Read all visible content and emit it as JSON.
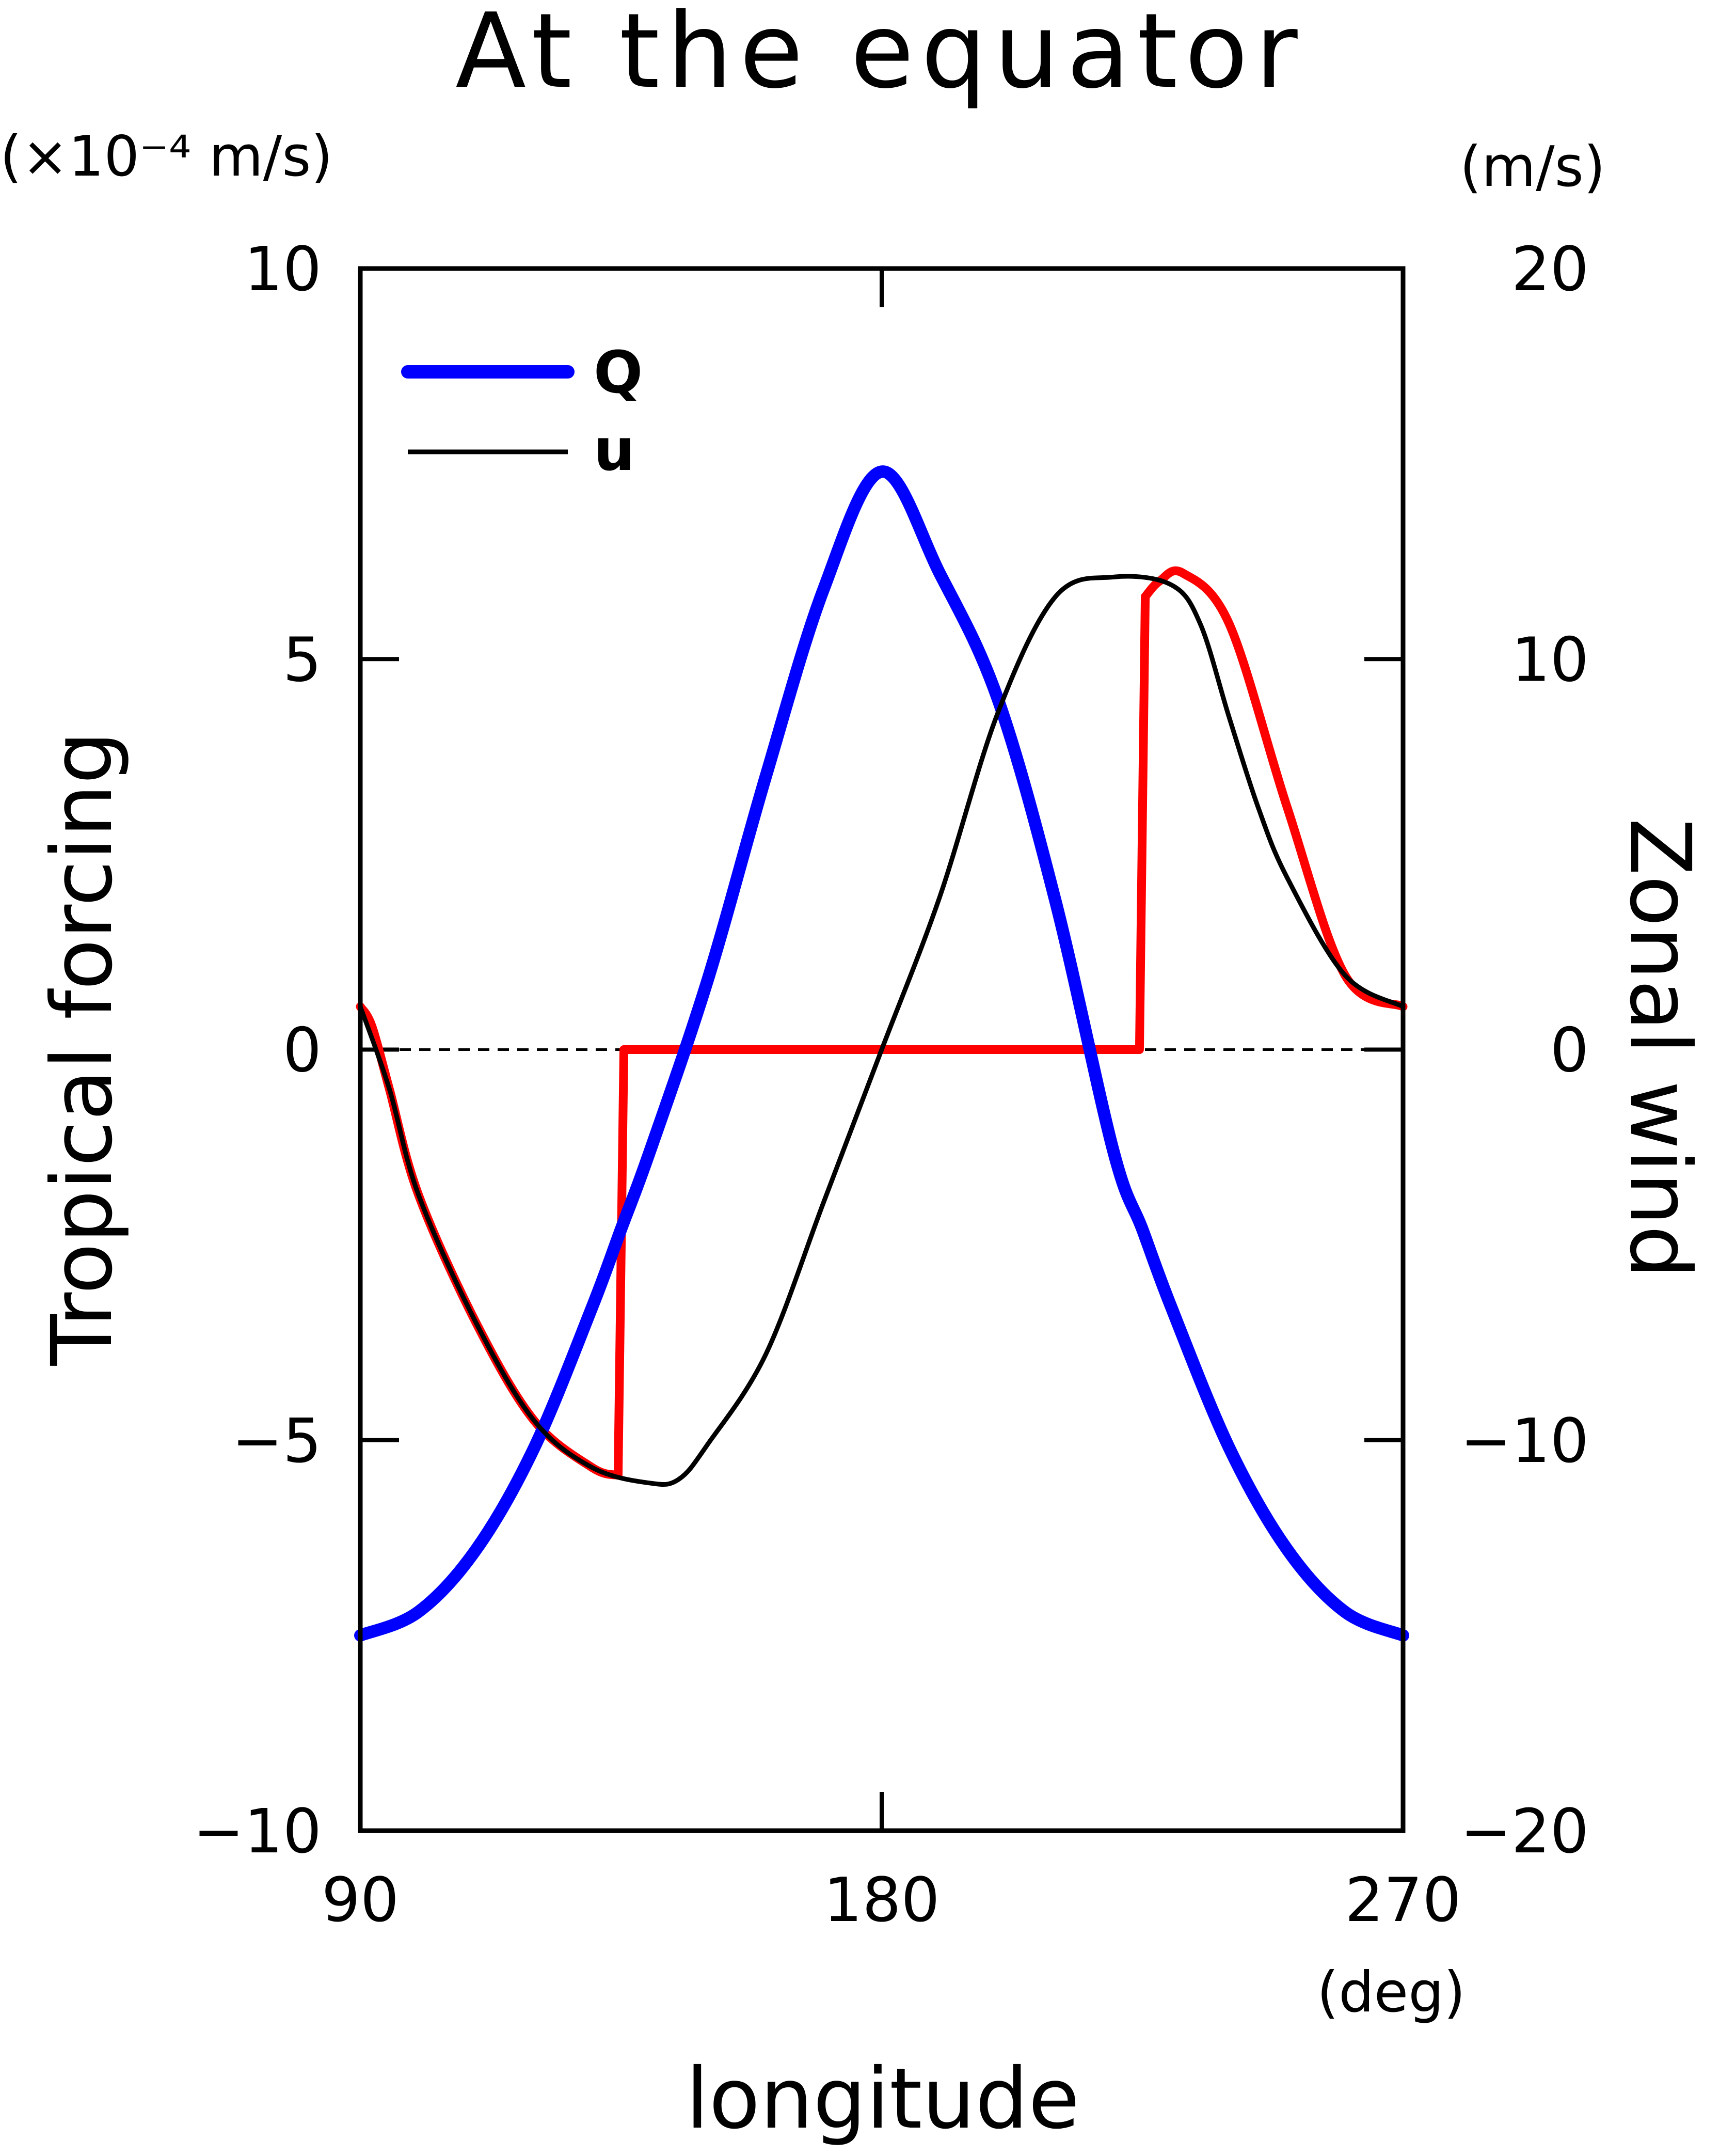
{
  "chart_data": {
    "type": "line",
    "title": "At the equator",
    "xlabel": "longitude",
    "x_unit": "(deg)",
    "ylabel_left": "Tropical forcing",
    "ylabel_left_unit": "(×10⁻⁴ m/s)",
    "ylabel_right": "Zonal wind",
    "ylabel_right_unit": "(m/s)",
    "xlim": [
      90,
      270
    ],
    "ylim_left": [
      -10,
      10
    ],
    "ylim_right": [
      -20,
      20
    ],
    "x_ticks": [
      90,
      180,
      270
    ],
    "y_ticks_left": [
      -10,
      -5,
      0,
      5,
      10
    ],
    "y_ticks_right": [
      -20,
      -10,
      0,
      10,
      20
    ],
    "x_tick_labels": [
      "90",
      "180",
      "270"
    ],
    "y_tick_labels_left": [
      "−10",
      "−5",
      "0",
      "5",
      "10"
    ],
    "y_tick_labels_right": [
      "−20",
      "−10",
      "0",
      "10",
      "20"
    ],
    "zero_line": "dashed",
    "grid": false,
    "legend_position": "top-left",
    "legend": [
      {
        "label": "Q",
        "color": "#0000ff"
      },
      {
        "label": "u",
        "color": "#000000"
      }
    ],
    "series": [
      {
        "name": "Q",
        "axis": "left",
        "color": "#0000ff",
        "x": [
          90,
          100,
          110,
          120,
          130,
          135,
          140,
          150,
          160,
          170,
          180,
          190,
          200,
          210,
          220,
          225,
          230,
          240,
          250,
          260,
          270
        ],
        "y": [
          -7.5,
          -7.2,
          -6.4,
          -5.1,
          -3.3,
          -2.3,
          -1.3,
          0.9,
          3.5,
          5.9,
          7.4,
          6.1,
          4.5,
          1.9,
          -1.3,
          -2.3,
          -3.3,
          -5.1,
          -6.4,
          -7.2,
          -7.5
        ]
      },
      {
        "name": "u",
        "axis": "right",
        "color": "#000000",
        "x": [
          90,
          95,
          100,
          110,
          120,
          130,
          140,
          145,
          150,
          160,
          170,
          180,
          190,
          200,
          210,
          220,
          230,
          235,
          240,
          245,
          250,
          260,
          270
        ],
        "y": [
          1.1,
          -1.0,
          -3.7,
          -7.0,
          -9.5,
          -10.7,
          -11.1,
          -11.0,
          -10.1,
          -7.8,
          -3.9,
          0.0,
          3.9,
          8.6,
          11.6,
          12.1,
          11.9,
          10.9,
          8.5,
          6.2,
          4.4,
          1.9,
          1.1
        ]
      },
      {
        "color": "#ff0000",
        "axis": "right",
        "x": [
          90,
          92,
          95,
          100,
          110,
          120,
          130,
          134.5,
          135.5,
          180,
          224.5,
          225.5,
          228,
          232,
          240,
          250,
          260,
          270
        ],
        "y": [
          1.1,
          0.6,
          -1.0,
          -3.7,
          -7.0,
          -9.5,
          -10.7,
          -10.9,
          0.0,
          0.0,
          0.0,
          11.6,
          12.0,
          12.2,
          10.9,
          6.2,
          1.9,
          1.1
        ]
      }
    ]
  }
}
